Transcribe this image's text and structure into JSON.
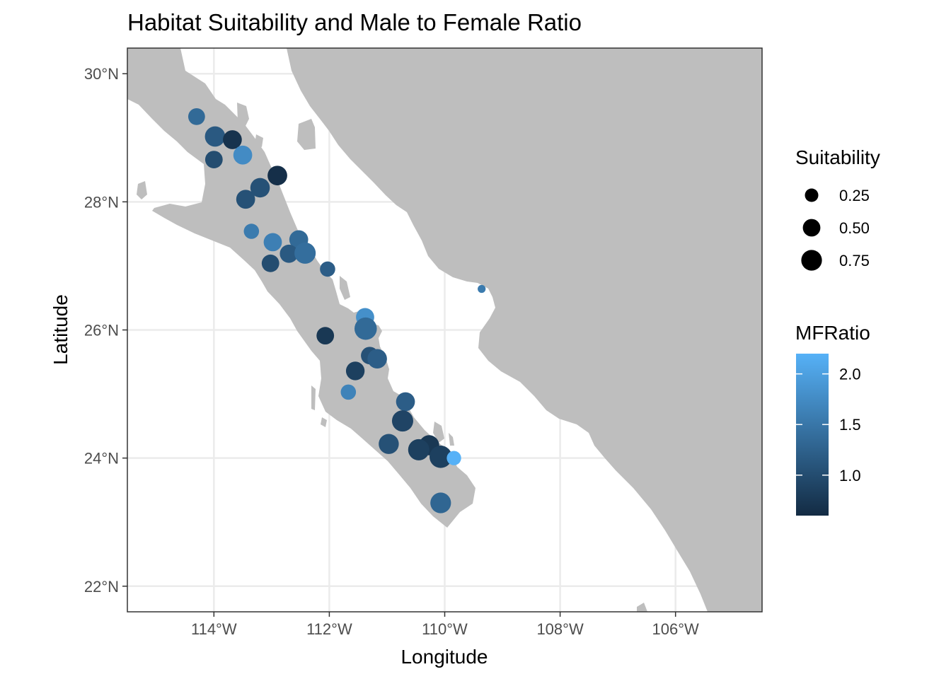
{
  "chart_data": {
    "type": "scatter",
    "title": "Habitat Suitability and Male to Female Ratio",
    "xlabel": "Longitude",
    "ylabel": "Latitude",
    "xlim": [
      -115.5,
      -104.5
    ],
    "ylim": [
      21.6,
      30.4
    ],
    "x_ticks": [
      {
        "value": -114,
        "label": "114°W"
      },
      {
        "value": -112,
        "label": "112°W"
      },
      {
        "value": -110,
        "label": "110°W"
      },
      {
        "value": -108,
        "label": "108°W"
      },
      {
        "value": -106,
        "label": "106°W"
      }
    ],
    "y_ticks": [
      {
        "value": 22,
        "label": "22°N"
      },
      {
        "value": 24,
        "label": "24°N"
      },
      {
        "value": 26,
        "label": "26°N"
      },
      {
        "value": 28,
        "label": "28°N"
      },
      {
        "value": 30,
        "label": "30°N"
      }
    ],
    "grid": true,
    "legend_position": "right",
    "size_legend": {
      "title": "Suitability",
      "entries": [
        {
          "label": "0.25",
          "value": 0.25
        },
        {
          "label": "0.50",
          "value": 0.5
        },
        {
          "label": "0.75",
          "value": 0.75
        }
      ]
    },
    "color_legend": {
      "title": "MFRatio",
      "range": [
        0.6,
        2.2
      ],
      "low_color": "#132B43",
      "high_color": "#56B1F7",
      "ticks": [
        {
          "value": 1.0,
          "label": "1.0"
        },
        {
          "value": 1.5,
          "label": "1.5"
        },
        {
          "value": 2.0,
          "label": "2.0"
        }
      ]
    },
    "land_color": "#BEBEBE",
    "points": [
      {
        "lon": -114.3,
        "lat": 29.33,
        "suitability": 0.45,
        "mfratio": 1.35
      },
      {
        "lon": -113.98,
        "lat": 29.02,
        "suitability": 0.72,
        "mfratio": 1.15
      },
      {
        "lon": -113.68,
        "lat": 28.97,
        "suitability": 0.6,
        "mfratio": 0.7
      },
      {
        "lon": -113.5,
        "lat": 28.73,
        "suitability": 0.6,
        "mfratio": 1.75
      },
      {
        "lon": -114.0,
        "lat": 28.66,
        "suitability": 0.5,
        "mfratio": 1.0
      },
      {
        "lon": -112.9,
        "lat": 28.41,
        "suitability": 0.66,
        "mfratio": 0.65
      },
      {
        "lon": -113.2,
        "lat": 28.22,
        "suitability": 0.65,
        "mfratio": 1.05
      },
      {
        "lon": -113.45,
        "lat": 28.04,
        "suitability": 0.6,
        "mfratio": 1.05
      },
      {
        "lon": -113.35,
        "lat": 27.54,
        "suitability": 0.35,
        "mfratio": 1.55
      },
      {
        "lon": -112.98,
        "lat": 27.37,
        "suitability": 0.55,
        "mfratio": 1.6
      },
      {
        "lon": -112.53,
        "lat": 27.41,
        "suitability": 0.6,
        "mfratio": 1.35
      },
      {
        "lon": -112.7,
        "lat": 27.19,
        "suitability": 0.55,
        "mfratio": 1.15
      },
      {
        "lon": -112.42,
        "lat": 27.2,
        "suitability": 0.8,
        "mfratio": 1.4
      },
      {
        "lon": -113.02,
        "lat": 27.04,
        "suitability": 0.5,
        "mfratio": 1.0
      },
      {
        "lon": -112.03,
        "lat": 26.95,
        "suitability": 0.35,
        "mfratio": 1.2
      },
      {
        "lon": -109.36,
        "lat": 26.64,
        "suitability": 0.05,
        "mfratio": 1.55
      },
      {
        "lon": -111.38,
        "lat": 26.2,
        "suitability": 0.55,
        "mfratio": 1.8
      },
      {
        "lon": -111.37,
        "lat": 26.02,
        "suitability": 0.9,
        "mfratio": 1.35
      },
      {
        "lon": -112.07,
        "lat": 25.91,
        "suitability": 0.5,
        "mfratio": 0.75
      },
      {
        "lon": -111.3,
        "lat": 25.6,
        "suitability": 0.5,
        "mfratio": 1.05
      },
      {
        "lon": -111.17,
        "lat": 25.55,
        "suitability": 0.65,
        "mfratio": 1.2
      },
      {
        "lon": -111.55,
        "lat": 25.36,
        "suitability": 0.58,
        "mfratio": 0.85
      },
      {
        "lon": -111.67,
        "lat": 25.03,
        "suitability": 0.35,
        "mfratio": 1.65
      },
      {
        "lon": -110.68,
        "lat": 24.88,
        "suitability": 0.6,
        "mfratio": 1.2
      },
      {
        "lon": -110.73,
        "lat": 24.58,
        "suitability": 0.8,
        "mfratio": 0.9
      },
      {
        "lon": -110.97,
        "lat": 24.22,
        "suitability": 0.7,
        "mfratio": 1.05
      },
      {
        "lon": -110.27,
        "lat": 24.2,
        "suitability": 0.7,
        "mfratio": 0.75
      },
      {
        "lon": -110.45,
        "lat": 24.13,
        "suitability": 0.8,
        "mfratio": 0.85
      },
      {
        "lon": -110.07,
        "lat": 24.02,
        "suitability": 0.9,
        "mfratio": 0.85
      },
      {
        "lon": -109.84,
        "lat": 24.0,
        "suitability": 0.3,
        "mfratio": 2.2
      },
      {
        "lon": -110.07,
        "lat": 23.3,
        "suitability": 0.75,
        "mfratio": 1.3
      }
    ]
  }
}
